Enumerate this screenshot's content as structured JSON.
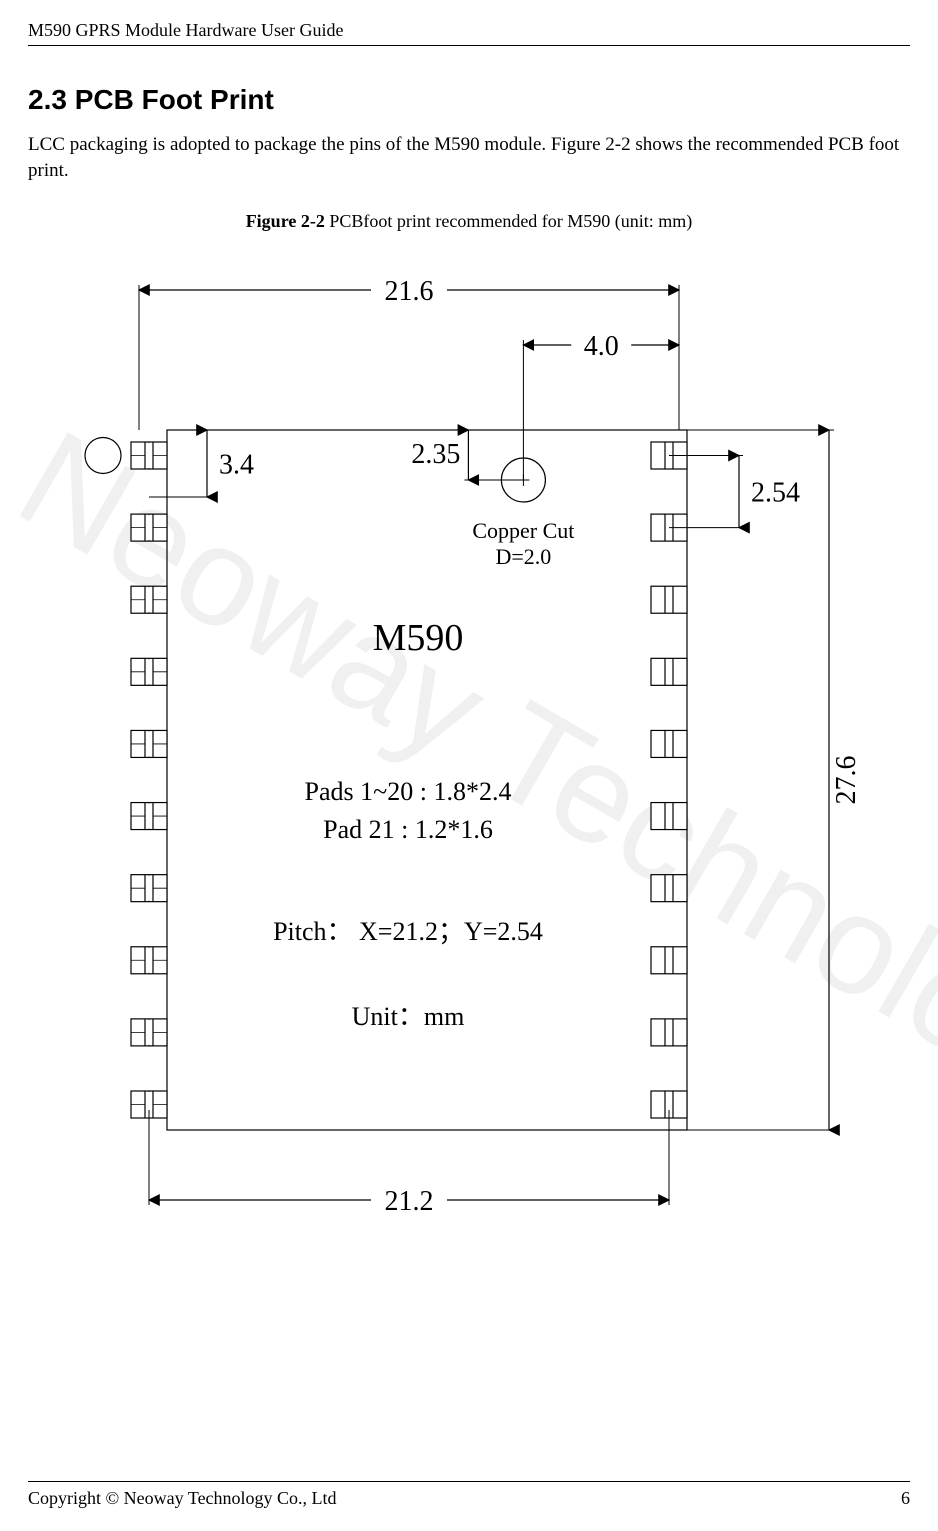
{
  "header": {
    "title": "M590 GPRS Module Hardware User Guide"
  },
  "section": {
    "number": "2.3",
    "title": "PCB Foot Print",
    "body": "LCC packaging is adopted to package the pins of the M590 module. Figure 2-2 shows the recommended PCB foot print."
  },
  "figure": {
    "caption_bold": "Figure 2-2",
    "caption_rest": " PCBfoot print recommended for M590 (unit: mm)"
  },
  "diagram": {
    "type": "engineering-footprint",
    "module_name": "M590",
    "copper_cut_label1": "Copper Cut",
    "copper_cut_label2": "D=2.0",
    "spec_line1": "Pads 1~20 : 1.8*2.4",
    "spec_line2": "Pad 21 : 1.2*1.6",
    "pitch_line": "Pitch： X=21.2；Y=2.54",
    "unit_line": "Unit：mm",
    "dimensions": {
      "outer_width": "21.6",
      "outer_height": "27.6",
      "pitch_x": "21.2",
      "pitch_y": "2.54",
      "dim_3_4": "3.4",
      "dim_4_0": "4.0",
      "dim_2_35": "2.35"
    },
    "style": {
      "line_color": "#000000",
      "fill_color": "#ffffff",
      "pad_stroke_width": 1.2,
      "dim_stroke_width": 1.2,
      "arrow_size": 8,
      "font_large": 38,
      "font_dim": 28,
      "font_spec": 26,
      "font_copper": 22,
      "pads_per_side": 10,
      "pad_w": 36,
      "pad_h": 27,
      "pad_gap": 10
    }
  },
  "footer": {
    "copyright": "Copyright © Neoway Technology Co., Ltd",
    "page": "6"
  },
  "colors": {
    "text": "#000000",
    "bg": "#ffffff",
    "watermark": "#f0f0f0"
  }
}
